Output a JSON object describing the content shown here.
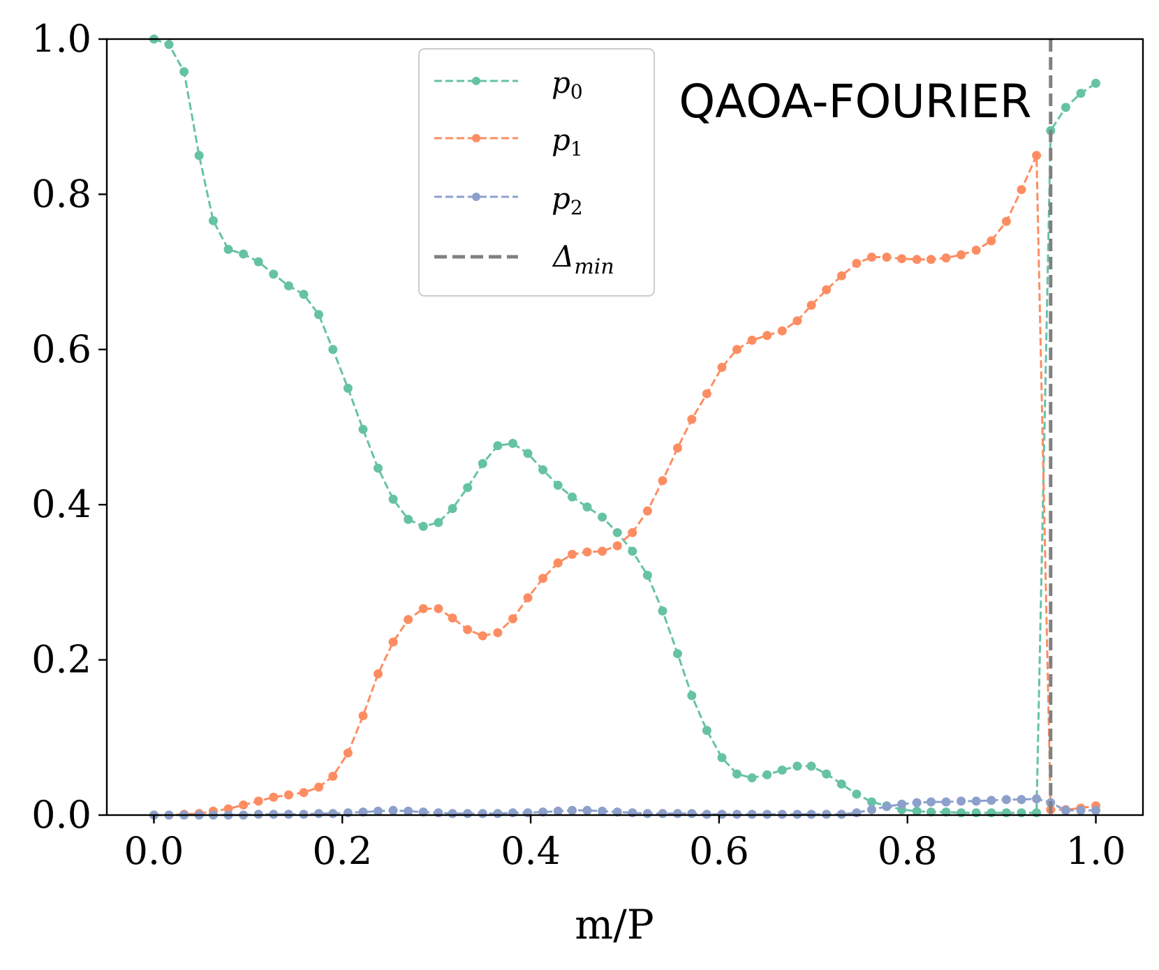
{
  "chart_data": {
    "type": "line",
    "title": "",
    "annotation": "QAOA-FOURIER",
    "xlabel": "m/P",
    "ylabel": "",
    "xlim": [
      -0.05,
      1.05
    ],
    "ylim": [
      0.0,
      1.0
    ],
    "xticks": [
      0.0,
      0.2,
      0.4,
      0.6,
      0.8,
      1.0
    ],
    "xtick_labels": [
      "0.0",
      "0.2",
      "0.4",
      "0.6",
      "0.8",
      "1.0"
    ],
    "yticks": [
      0.0,
      0.2,
      0.4,
      0.6,
      0.8,
      1.0
    ],
    "ytick_labels": [
      "0.0",
      "0.2",
      "0.4",
      "0.6",
      "0.8",
      "1.0"
    ],
    "grid": false,
    "legend_position": "top-center",
    "x": [
      0.0,
      0.016,
      0.032,
      0.048,
      0.063,
      0.079,
      0.095,
      0.111,
      0.127,
      0.143,
      0.159,
      0.175,
      0.19,
      0.206,
      0.222,
      0.238,
      0.254,
      0.27,
      0.286,
      0.302,
      0.317,
      0.333,
      0.349,
      0.365,
      0.381,
      0.397,
      0.413,
      0.429,
      0.444,
      0.46,
      0.476,
      0.492,
      0.508,
      0.524,
      0.54,
      0.556,
      0.571,
      0.587,
      0.603,
      0.619,
      0.635,
      0.651,
      0.667,
      0.683,
      0.698,
      0.714,
      0.73,
      0.746,
      0.762,
      0.778,
      0.794,
      0.81,
      0.825,
      0.841,
      0.857,
      0.873,
      0.889,
      0.905,
      0.921,
      0.937,
      0.952,
      0.968,
      0.984,
      1.0
    ],
    "series": [
      {
        "name": "p0",
        "label_base": "p",
        "label_sub": "0",
        "color": "#66c2a5",
        "values": [
          1.0,
          0.993,
          0.958,
          0.85,
          0.766,
          0.729,
          0.723,
          0.713,
          0.697,
          0.682,
          0.671,
          0.645,
          0.6,
          0.55,
          0.497,
          0.447,
          0.407,
          0.381,
          0.372,
          0.377,
          0.395,
          0.422,
          0.453,
          0.476,
          0.479,
          0.466,
          0.445,
          0.425,
          0.41,
          0.397,
          0.384,
          0.364,
          0.34,
          0.309,
          0.263,
          0.208,
          0.154,
          0.109,
          0.074,
          0.053,
          0.048,
          0.052,
          0.058,
          0.063,
          0.063,
          0.053,
          0.04,
          0.027,
          0.017,
          0.012,
          0.007,
          0.005,
          0.004,
          0.004,
          0.003,
          0.003,
          0.003,
          0.003,
          0.003,
          0.003,
          0.882,
          0.912,
          0.93,
          0.943
        ]
      },
      {
        "name": "p1",
        "label_base": "p",
        "label_sub": "1",
        "color": "#fc8d62",
        "values": [
          0.0,
          0.0,
          0.001,
          0.002,
          0.005,
          0.008,
          0.013,
          0.018,
          0.023,
          0.026,
          0.029,
          0.036,
          0.05,
          0.08,
          0.128,
          0.182,
          0.223,
          0.252,
          0.266,
          0.266,
          0.254,
          0.239,
          0.231,
          0.235,
          0.253,
          0.28,
          0.305,
          0.325,
          0.336,
          0.339,
          0.34,
          0.347,
          0.364,
          0.392,
          0.431,
          0.473,
          0.51,
          0.543,
          0.577,
          0.6,
          0.612,
          0.618,
          0.624,
          0.637,
          0.657,
          0.677,
          0.695,
          0.711,
          0.719,
          0.719,
          0.717,
          0.716,
          0.716,
          0.718,
          0.722,
          0.728,
          0.74,
          0.765,
          0.806,
          0.85,
          0.007,
          0.007,
          0.009,
          0.012
        ]
      },
      {
        "name": "p2",
        "label_base": "p",
        "label_sub": "2",
        "color": "#8da0cb",
        "values": [
          0.0,
          0.0,
          0.0,
          0.0,
          0.0,
          0.0,
          0.0,
          0.001,
          0.001,
          0.001,
          0.001,
          0.002,
          0.002,
          0.003,
          0.004,
          0.005,
          0.006,
          0.005,
          0.004,
          0.003,
          0.002,
          0.002,
          0.002,
          0.002,
          0.003,
          0.003,
          0.004,
          0.005,
          0.006,
          0.006,
          0.005,
          0.004,
          0.003,
          0.002,
          0.002,
          0.002,
          0.002,
          0.001,
          0.001,
          0.001,
          0.001,
          0.001,
          0.001,
          0.001,
          0.001,
          0.001,
          0.001,
          0.003,
          0.007,
          0.011,
          0.014,
          0.016,
          0.017,
          0.017,
          0.018,
          0.018,
          0.019,
          0.02,
          0.02,
          0.021,
          0.016,
          0.006,
          0.006,
          0.006
        ]
      }
    ],
    "vline": {
      "name": "Delta_min",
      "label_base": "Δ",
      "label_sub": "min",
      "x": 0.952,
      "color": "#808080"
    }
  }
}
